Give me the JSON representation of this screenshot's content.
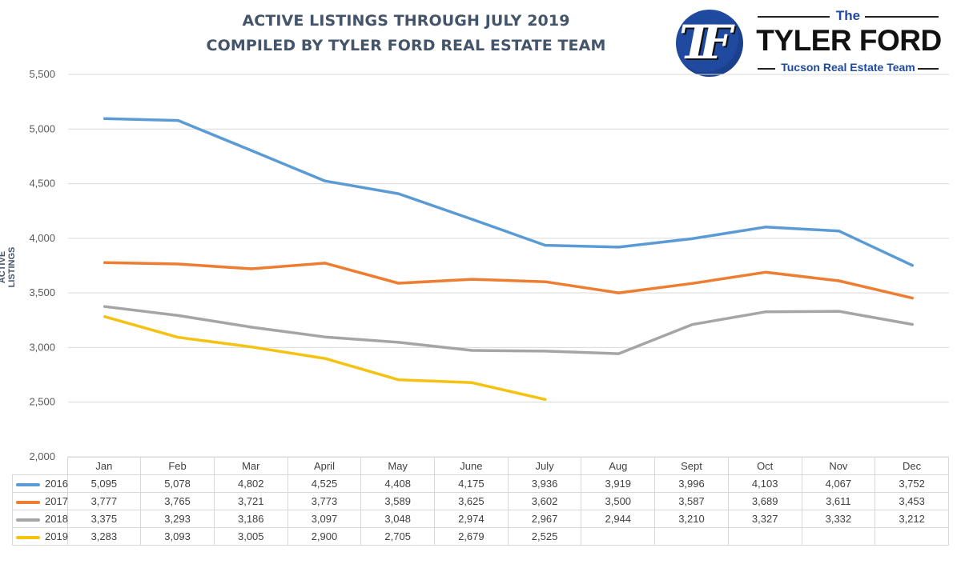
{
  "title_lines": [
    "ACTIVE LISTINGS THROUGH JULY 2019",
    "COMPILED BY TYLER FORD REAL ESTATE TEAM"
  ],
  "logo": {
    "monogram": "TF",
    "top_text": "The",
    "name": "TYLER FORD",
    "tagline": "Tucson Real Estate Team"
  },
  "chart_data": {
    "type": "line",
    "title": "ACTIVE LISTINGS THROUGH JULY 2019",
    "subtitle": "COMPILED BY TYLER FORD REAL ESTATE TEAM",
    "ylabel": "ACTIVE LISTINGS",
    "xlabel": "",
    "ylim": [
      2000,
      5500
    ],
    "yticks": [
      2000,
      2500,
      3000,
      3500,
      4000,
      4500,
      5000,
      5500
    ],
    "ytick_labels": [
      "2,000",
      "2,500",
      "3,000",
      "3,500",
      "4,000",
      "4,500",
      "5,000",
      "5,500"
    ],
    "grid": true,
    "legend": "data-table",
    "categories": [
      "Jan",
      "Feb",
      "Mar",
      "April",
      "May",
      "June",
      "July",
      "Aug",
      "Sept",
      "Oct",
      "Nov",
      "Dec"
    ],
    "series": [
      {
        "name": "2016",
        "color": "#5b9bd5",
        "values": [
          5095,
          5078,
          4802,
          4525,
          4408,
          4175,
          3936,
          3919,
          3996,
          4103,
          4067,
          3752
        ],
        "labels": [
          "5,095",
          "5,078",
          "4,802",
          "4,525",
          "4,408",
          "4,175",
          "3,936",
          "3,919",
          "3,996",
          "4,103",
          "4,067",
          "3,752"
        ]
      },
      {
        "name": "2017",
        "color": "#ed7d31",
        "values": [
          3777,
          3765,
          3721,
          3773,
          3589,
          3625,
          3602,
          3500,
          3587,
          3689,
          3611,
          3453
        ],
        "labels": [
          "3,777",
          "3,765",
          "3,721",
          "3,773",
          "3,589",
          "3,625",
          "3,602",
          "3,500",
          "3,587",
          "3,689",
          "3,611",
          "3,453"
        ]
      },
      {
        "name": "2018",
        "color": "#a5a5a5",
        "values": [
          3375,
          3293,
          3186,
          3097,
          3048,
          2974,
          2967,
          2944,
          3210,
          3327,
          3332,
          3212
        ],
        "labels": [
          "3,375",
          "3,293",
          "3,186",
          "3,097",
          "3,048",
          "2,974",
          "2,967",
          "2,944",
          "3,210",
          "3,327",
          "3,332",
          "3,212"
        ]
      },
      {
        "name": "2019",
        "color": "#f5c211",
        "values": [
          3283,
          3093,
          3005,
          2900,
          2705,
          2679,
          2525,
          null,
          null,
          null,
          null,
          null
        ],
        "labels": [
          "3,283",
          "3,093",
          "3,005",
          "2,900",
          "2,705",
          "2,679",
          "2,525",
          "",
          "",
          "",
          "",
          ""
        ]
      }
    ]
  }
}
